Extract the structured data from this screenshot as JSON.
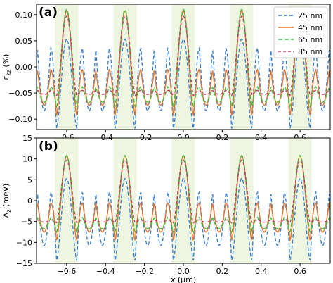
{
  "chart_data": [
    {
      "type": "line",
      "panel_label": "(a)",
      "ylabel": "ε_zz (%)",
      "ylabel_main": "ε",
      "ylabel_sub": "zz",
      "ylabel_unit": " (%)",
      "xlabel": "",
      "xlim": [
        -0.755,
        0.755
      ],
      "ylim": [
        -0.12,
        0.12
      ],
      "xticks": [
        "-0.6",
        "-0.4",
        "-0.2",
        "0.0",
        "0.2",
        "0.4",
        "0.6"
      ],
      "xtick_values": [
        -0.6,
        -0.4,
        -0.2,
        0.0,
        0.2,
        0.4,
        0.6
      ],
      "yticks": [
        "0.10",
        "0.05",
        "0.00",
        "−0.05",
        "−0.10"
      ],
      "ytick_values": [
        0.1,
        0.05,
        0.0,
        -0.05,
        -0.1
      ],
      "shaded_bands_x": [
        [
          -0.66,
          -0.54
        ],
        [
          -0.36,
          -0.24
        ],
        [
          -0.06,
          0.06
        ],
        [
          0.24,
          0.36
        ],
        [
          0.54,
          0.66
        ]
      ],
      "legend_position": "top-right",
      "series": [
        {
          "name": "25 nm",
          "color": "#3b82d4",
          "dash": "5,3",
          "peak": 0.053,
          "trough_a": 0.036,
          "trough_b": -0.118
        },
        {
          "name": "45 nm",
          "color": "#e4742b",
          "dash": "",
          "peak": 0.107,
          "trough_a": -0.005,
          "trough_b": -0.093
        },
        {
          "name": "65 nm",
          "color": "#3fbf3f",
          "dash": "6,3",
          "peak": 0.11,
          "trough_a": -0.038,
          "trough_b": -0.076
        },
        {
          "name": "85 nm",
          "color": "#c43a6a",
          "dash": "4,3",
          "peak": 0.097,
          "trough_a": -0.045,
          "trough_b": -0.055
        }
      ]
    },
    {
      "type": "line",
      "panel_label": "(b)",
      "ylabel": "Δ_z (meV)",
      "ylabel_main": "Δ",
      "ylabel_sub": "z",
      "ylabel_unit": " (meV)",
      "xlabel": "x (μm)",
      "xlim": [
        -0.755,
        0.755
      ],
      "ylim": [
        -15,
        15
      ],
      "xticks": [
        "−0.6",
        "−0.4",
        "−0.2",
        "0.0",
        "0.2",
        "0.4",
        "0.6"
      ],
      "xtick_values": [
        -0.6,
        -0.4,
        -0.2,
        0.0,
        0.2,
        0.4,
        0.6
      ],
      "yticks": [
        "15",
        "10",
        "5",
        "0",
        "−5",
        "−10",
        "−15"
      ],
      "ytick_values": [
        15,
        10,
        5,
        0,
        -5,
        -10,
        -15
      ],
      "shaded_bands_x": [
        [
          -0.66,
          -0.54
        ],
        [
          -0.36,
          -0.24
        ],
        [
          -0.06,
          0.06
        ],
        [
          0.24,
          0.36
        ],
        [
          0.54,
          0.66
        ]
      ],
      "series": [
        {
          "name": "25 nm",
          "color": "#3b82d4",
          "dash": "5,3",
          "peak": 5.3,
          "trough_a": 2.0,
          "trough_b": -14.3
        },
        {
          "name": "45 nm",
          "color": "#e4742b",
          "dash": "",
          "peak": 10.7,
          "trough_a": -0.5,
          "trough_b": -9.5
        },
        {
          "name": "65 nm",
          "color": "#3fbf3f",
          "dash": "6,3",
          "peak": 10.8,
          "trough_a": -4.0,
          "trough_b": -7.5
        },
        {
          "name": "85 nm",
          "color": "#c43a6a",
          "dash": "4,3",
          "peak": 9.7,
          "trough_a": -4.6,
          "trough_b": -5.3
        }
      ]
    }
  ]
}
